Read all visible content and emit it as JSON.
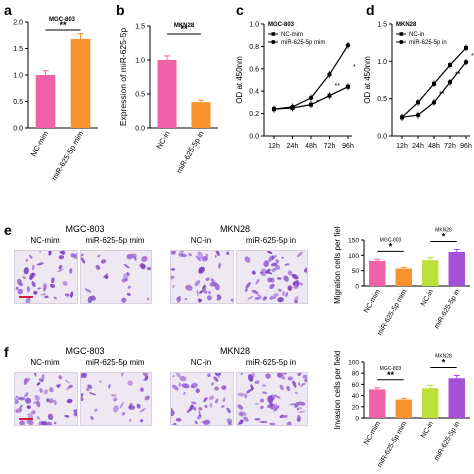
{
  "panels": {
    "a": {
      "letter": "a",
      "cell": "MGC-803",
      "sig": "**",
      "ylim": [
        0,
        2.0
      ],
      "yticks": [
        "0.0",
        "0.5",
        "1.0",
        "1.5",
        "2.0"
      ],
      "categories": [
        "NC-mim",
        "miR-625-5p mim"
      ],
      "values": [
        1.0,
        1.68
      ],
      "errors": [
        0.08,
        0.1
      ],
      "colors": [
        "#f062a8",
        "#f7922c"
      ]
    },
    "b": {
      "letter": "b",
      "cell": "MKN28",
      "sig": "**",
      "ylim": [
        0,
        1.5
      ],
      "yticks": [
        "0.0",
        "0.5",
        "1.0",
        "1.5"
      ],
      "ylabel": "Expression of miR-625-5p",
      "categories": [
        "NC-in",
        "miR-625-5p in"
      ],
      "values": [
        1.0,
        0.38
      ],
      "errors": [
        0.06,
        0.03
      ],
      "colors": [
        "#f062a8",
        "#f7922c"
      ]
    },
    "c": {
      "letter": "c",
      "cell": "MGC-803",
      "legend": [
        "NC-mim",
        "miR-625-5p mim"
      ],
      "ylabel": "OD at 450nm",
      "ylim": [
        0,
        1.0
      ],
      "yticks": [
        "0.0",
        "0.2",
        "0.4",
        "0.6",
        "0.8",
        "1.0"
      ],
      "x": [
        "12h",
        "24h",
        "48h",
        "72h",
        "96h"
      ],
      "series": [
        {
          "name": "NC-mim",
          "values": [
            0.24,
            0.25,
            0.28,
            0.36,
            0.44
          ]
        },
        {
          "name": "miR-625-5p mim",
          "values": [
            0.24,
            0.26,
            0.34,
            0.55,
            0.81
          ]
        }
      ],
      "stars": [
        "*",
        "**",
        "**"
      ]
    },
    "d": {
      "letter": "d",
      "cell": "MKN28",
      "legend": [
        "NC-in",
        "miR-625-5p in"
      ],
      "ylabel": "OD at 450nm",
      "ylim": [
        0,
        1.5
      ],
      "yticks": [
        "0.0",
        "0.5",
        "1.0",
        "1.5"
      ],
      "x": [
        "12h",
        "24h",
        "48h",
        "72h",
        "96h"
      ],
      "series": [
        {
          "name": "NC-in",
          "values": [
            0.25,
            0.45,
            0.7,
            0.95,
            1.18
          ]
        },
        {
          "name": "miR-625-5p in",
          "values": [
            0.25,
            0.28,
            0.45,
            0.72,
            0.99
          ]
        }
      ],
      "stars": [
        "**",
        "**",
        "*"
      ]
    },
    "e": {
      "letter": "e",
      "cell_left": "MGC-803",
      "cell_right": "MKN28",
      "cols": [
        "NC-mim",
        "miR-625-5p mim",
        "NC-in",
        "miR-625-5p in"
      ],
      "ylabel": "Migration cells per field",
      "ylim": [
        0,
        150
      ],
      "yticks": [
        "0",
        "50",
        "100",
        "150"
      ],
      "categories": [
        "NC-mim",
        "miR-625-5p mim",
        "NC-in",
        "miR-625-5p in"
      ],
      "values": [
        82,
        57,
        84,
        111
      ],
      "errors": [
        5,
        4,
        8,
        8
      ],
      "colors": [
        "#f062a8",
        "#f7922c",
        "#bde03a",
        "#a64fd9"
      ],
      "sig_left": "*",
      "sig_right": "*",
      "cell_tag_left": "MGC-803",
      "cell_tag_right": "MKN28"
    },
    "f": {
      "letter": "f",
      "cell_left": "MGC-803",
      "cell_right": "MKN28",
      "cols": [
        "NC-mim",
        "miR-625-5p mim",
        "NC-in",
        "miR-625-5p in"
      ],
      "ylabel": "Invasion cells per field",
      "ylim": [
        0,
        100
      ],
      "yticks": [
        "0",
        "20",
        "40",
        "60",
        "80",
        "100"
      ],
      "categories": [
        "NC-mim",
        "miR-625-5p mim",
        "NC-in",
        "miR-625-5p in"
      ],
      "values": [
        51,
        33,
        53,
        71
      ],
      "errors": [
        3,
        2,
        5,
        5
      ],
      "colors": [
        "#f062a8",
        "#f7922c",
        "#bde03a",
        "#a64fd9"
      ],
      "sig_left": "**",
      "sig_right": "*",
      "cell_tag_left": "MGC-803",
      "cell_tag_right": "MKN28"
    }
  },
  "chart_data": [
    {
      "type": "bar",
      "categories": [
        "NC-mim",
        "miR-625-5p mim"
      ],
      "values": [
        1.0,
        1.68
      ],
      "title": "MGC-803",
      "ylim": [
        0,
        2.0
      ]
    },
    {
      "type": "bar",
      "categories": [
        "NC-in",
        "miR-625-5p in"
      ],
      "values": [
        1.0,
        0.38
      ],
      "title": "MKN28",
      "ylabel": "Expression of miR-625-5p",
      "ylim": [
        0,
        1.5
      ]
    },
    {
      "type": "line",
      "x": [
        "12h",
        "24h",
        "48h",
        "72h",
        "96h"
      ],
      "title": "MGC-803",
      "ylabel": "OD at 450nm",
      "ylim": [
        0,
        1.0
      ],
      "series": [
        {
          "name": "NC-mim",
          "values": [
            0.24,
            0.25,
            0.28,
            0.36,
            0.44
          ]
        },
        {
          "name": "miR-625-5p mim",
          "values": [
            0.24,
            0.26,
            0.34,
            0.55,
            0.81
          ]
        }
      ]
    },
    {
      "type": "line",
      "x": [
        "12h",
        "24h",
        "48h",
        "72h",
        "96h"
      ],
      "title": "MKN28",
      "ylabel": "OD at 450nm",
      "ylim": [
        0,
        1.5
      ],
      "series": [
        {
          "name": "NC-in",
          "values": [
            0.25,
            0.45,
            0.7,
            0.95,
            1.18
          ]
        },
        {
          "name": "miR-625-5p in",
          "values": [
            0.25,
            0.28,
            0.45,
            0.72,
            0.99
          ]
        }
      ]
    },
    {
      "type": "bar",
      "categories": [
        "NC-mim",
        "miR-625-5p mim",
        "NC-in",
        "miR-625-5p in"
      ],
      "values": [
        82,
        57,
        84,
        111
      ],
      "ylabel": "Migration cells per field",
      "ylim": [
        0,
        150
      ]
    },
    {
      "type": "bar",
      "categories": [
        "NC-mim",
        "miR-625-5p mim",
        "NC-in",
        "miR-625-5p in"
      ],
      "values": [
        51,
        33,
        53,
        71
      ],
      "ylabel": "Invasion cells per field",
      "ylim": [
        0,
        100
      ]
    }
  ]
}
